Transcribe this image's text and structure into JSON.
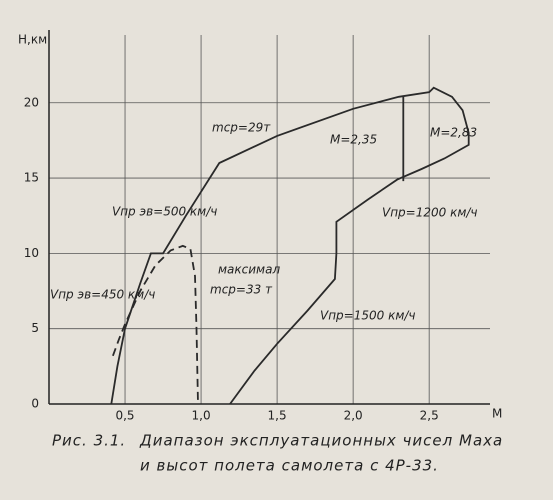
{
  "chart_data": {
    "type": "line",
    "xlabel": "M",
    "ylabel": "H,км",
    "xlim": [
      0,
      2.9
    ],
    "ylim": [
      0,
      24.5
    ],
    "xticks": [
      {
        "value": 0.5,
        "label": "0,5"
      },
      {
        "value": 1.0,
        "label": "1,0"
      },
      {
        "value": 1.5,
        "label": "1,5"
      },
      {
        "value": 2.0,
        "label": "2,0"
      },
      {
        "value": 2.5,
        "label": "2,5"
      }
    ],
    "yticks": [
      0,
      5,
      10,
      15,
      20
    ],
    "grid": true,
    "series": [
      {
        "color": "#2a2a2a",
        "dash": false,
        "x": [
          0.41,
          0.45,
          0.5,
          0.6,
          0.67,
          0.75,
          0.9,
          1.12,
          1.5,
          2.0,
          2.3,
          2.5,
          2.53,
          2.65,
          2.72,
          2.76,
          2.76,
          2.6,
          2.45,
          2.29,
          2.1,
          1.89,
          1.89,
          1.88,
          1.7,
          1.5,
          1.35,
          1.19
        ],
        "values": [
          0,
          2.5,
          5,
          8,
          10,
          10,
          12.5,
          16,
          17.8,
          19.6,
          20.4,
          20.7,
          21,
          20.4,
          19.5,
          18,
          17.2,
          16.3,
          15.6,
          14.9,
          13.6,
          12.1,
          10,
          8.3,
          6.2,
          4,
          2.2,
          0
        ]
      },
      {
        "color": "#2a2a2a",
        "dash": false,
        "x": [
          2.33,
          2.33
        ],
        "values": [
          20.4,
          14.8
        ]
      },
      {
        "color": "#2a2a2a",
        "dash": true,
        "x": [
          0.42,
          0.46,
          0.5,
          0.6,
          0.7,
          0.8,
          0.88,
          0.93,
          0.96,
          0.97,
          0.98
        ],
        "values": [
          3.2,
          4.3,
          5.3,
          7.5,
          9.2,
          10.2,
          10.5,
          10.3,
          8.5,
          5,
          0
        ]
      }
    ],
    "annotations": [
      "mср=29т",
      "M=2,35",
      "M=2,83",
      "Vпр эв=500 км/ч",
      "Vпр=1200 км/ч",
      "Vпр эв=450 км/ч",
      "максимал",
      "mср=33 т",
      "Vпр=1500 км/ч"
    ],
    "caption": [
      "Рис. 3.1.",
      "Диапазон эксплуатационных чисел Маха",
      "и высот полета самолета с 4Р-33."
    ]
  }
}
